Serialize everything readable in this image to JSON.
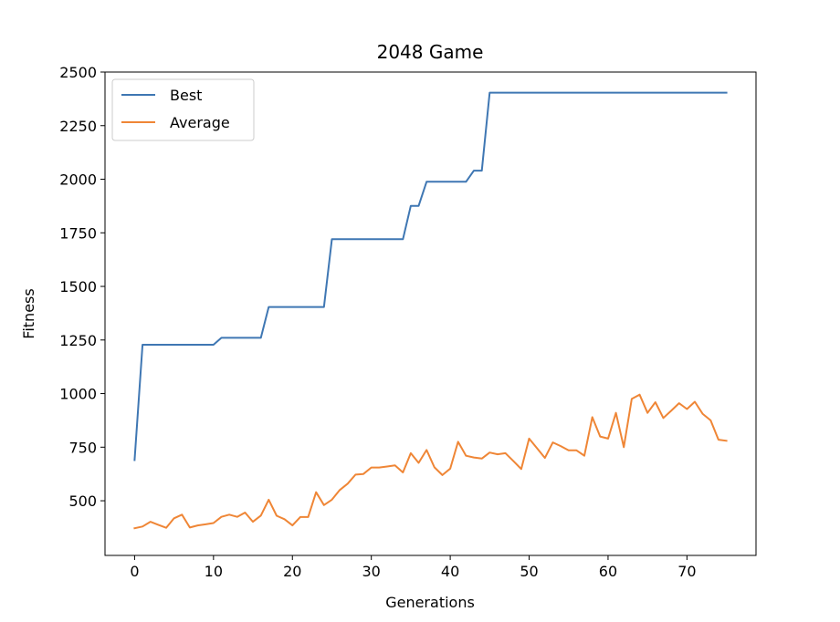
{
  "chart_data": {
    "type": "line",
    "title": "2048 Game",
    "xlabel": "Generations",
    "ylabel": "Fitness",
    "xlim": [
      -3.75,
      78.75
    ],
    "ylim": [
      245,
      2500
    ],
    "xticks": [
      0,
      10,
      20,
      30,
      40,
      50,
      60,
      70
    ],
    "yticks": [
      500,
      750,
      1000,
      1250,
      1500,
      1750,
      2000,
      2250,
      2500
    ],
    "grid": false,
    "legend_position": "top-left",
    "series": [
      {
        "name": "Best",
        "color": "#3f77b3",
        "x": [
          0,
          1,
          2,
          3,
          4,
          5,
          6,
          7,
          8,
          9,
          10,
          11,
          12,
          13,
          14,
          15,
          16,
          17,
          18,
          19,
          20,
          21,
          22,
          23,
          24,
          25,
          26,
          27,
          28,
          29,
          30,
          31,
          32,
          33,
          34,
          35,
          36,
          37,
          38,
          39,
          40,
          41,
          42,
          43,
          44,
          45,
          46,
          47,
          48,
          49,
          50,
          51,
          52,
          53,
          54,
          55,
          56,
          57,
          58,
          59,
          60,
          61,
          62,
          63,
          64,
          65,
          66,
          67,
          68,
          69,
          70,
          71,
          72,
          73,
          74,
          75
        ],
        "values": [
          690,
          1228,
          1228,
          1228,
          1228,
          1228,
          1228,
          1228,
          1228,
          1228,
          1228,
          1260,
          1260,
          1260,
          1260,
          1260,
          1260,
          1404,
          1404,
          1404,
          1404,
          1404,
          1404,
          1404,
          1404,
          1720,
          1720,
          1720,
          1720,
          1720,
          1720,
          1720,
          1720,
          1720,
          1720,
          1876,
          1876,
          1988,
          1988,
          1988,
          1988,
          1988,
          1988,
          2040,
          2040,
          2404,
          2404,
          2404,
          2404,
          2404,
          2404,
          2404,
          2404,
          2404,
          2404,
          2404,
          2404,
          2404,
          2404,
          2404,
          2404,
          2404,
          2404,
          2404,
          2404,
          2404,
          2404,
          2404,
          2404,
          2404,
          2404,
          2404,
          2404,
          2404,
          2404,
          2404
        ]
      },
      {
        "name": "Average",
        "color": "#ef8636",
        "x": [
          0,
          1,
          2,
          3,
          4,
          5,
          6,
          7,
          8,
          9,
          10,
          11,
          12,
          13,
          14,
          15,
          16,
          17,
          18,
          19,
          20,
          21,
          22,
          23,
          24,
          25,
          26,
          27,
          28,
          29,
          30,
          31,
          32,
          33,
          34,
          35,
          36,
          37,
          38,
          39,
          40,
          41,
          42,
          43,
          44,
          45,
          46,
          47,
          48,
          49,
          50,
          51,
          52,
          53,
          54,
          55,
          56,
          57,
          58,
          59,
          60,
          61,
          62,
          63,
          64,
          65,
          66,
          67,
          68,
          69,
          70,
          71,
          72,
          73,
          74,
          75
        ],
        "values": [
          372,
          380,
          402,
          388,
          374,
          418,
          435,
          375,
          385,
          390,
          396,
          425,
          435,
          425,
          445,
          402,
          431,
          505,
          430,
          414,
          385,
          424,
          424,
          540,
          480,
          505,
          550,
          580,
          622,
          625,
          655,
          655,
          660,
          665,
          632,
          722,
          677,
          737,
          656,
          620,
          650,
          775,
          710,
          702,
          697,
          725,
          717,
          722,
          686,
          648,
          790,
          745,
          700,
          772,
          755,
          735,
          735,
          710,
          890,
          800,
          790,
          910,
          750,
          975,
          995,
          910,
          960,
          886,
          920,
          955,
          928,
          962,
          905,
          875,
          785,
          780
        ]
      }
    ]
  }
}
